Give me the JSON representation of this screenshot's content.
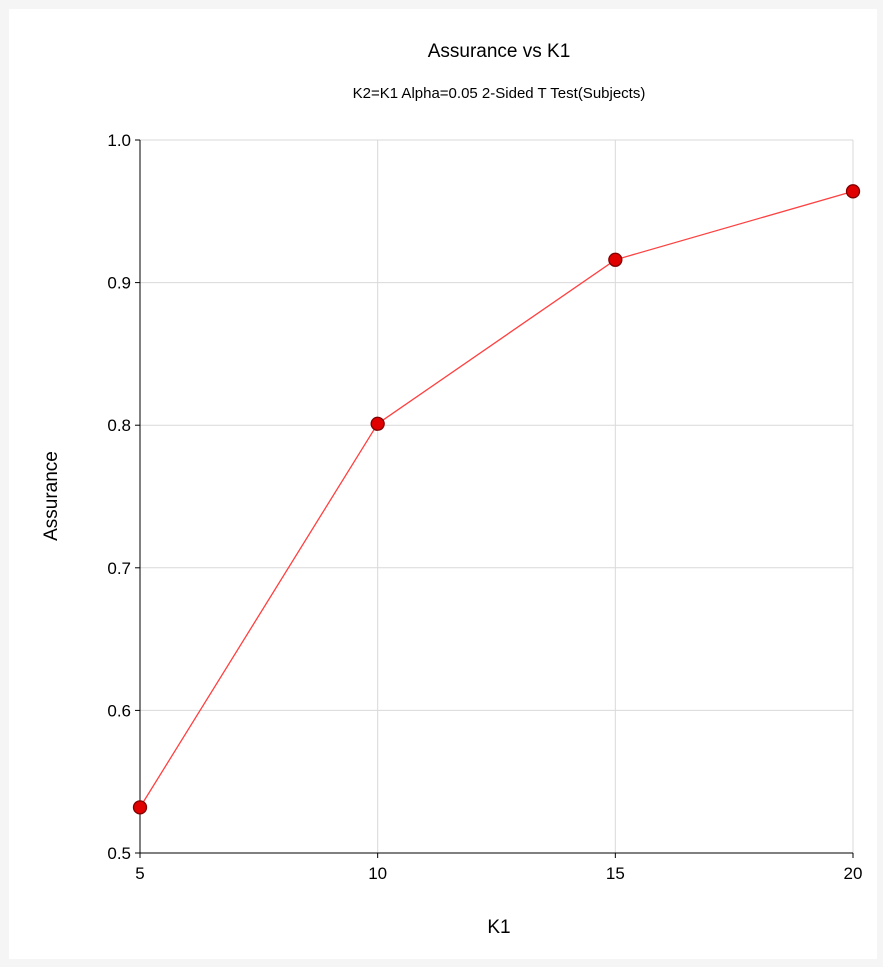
{
  "chart_data": {
    "type": "line",
    "title": "Assurance vs K1",
    "subtitle": "K2=K1 Alpha=0.05 2-Sided T Test(Subjects)",
    "xlabel": "K1",
    "ylabel": "Assurance",
    "xlim": [
      5,
      20
    ],
    "ylim": [
      0.5,
      1.0
    ],
    "xticks": [
      5,
      10,
      15,
      20
    ],
    "xtick_labels": [
      "5",
      "10",
      "15",
      "20"
    ],
    "yticks": [
      0.5,
      0.6,
      0.7,
      0.8,
      0.9,
      1.0
    ],
    "ytick_labels": [
      "0.5",
      "0.6",
      "0.7",
      "0.8",
      "0.9",
      "1.0"
    ],
    "grid": true,
    "series": [
      {
        "x": [
          5,
          10,
          15,
          20
        ],
        "y": [
          0.532,
          0.801,
          0.916,
          0.964
        ],
        "line_color": "#ff4040",
        "marker_fill": "#e00000",
        "marker_stroke": "#800000"
      }
    ]
  }
}
